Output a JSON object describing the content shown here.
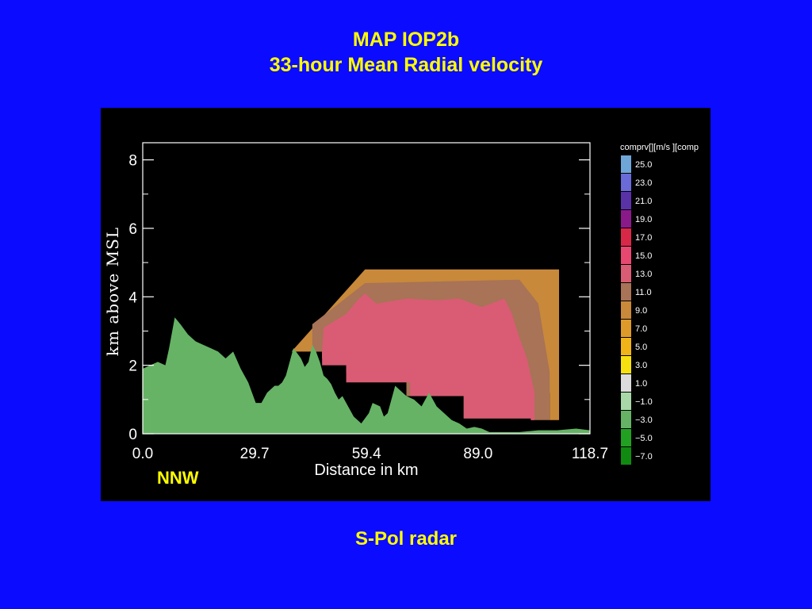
{
  "slide": {
    "title_line1": "MAP IOP2b",
    "title_line2": "33-hour Mean Radial velocity",
    "direction": "NNW",
    "caption": "S-Pol radar"
  },
  "colors": {
    "background": "#0b0bff",
    "text_yellow": "#ffff00",
    "terrain": "#66b366",
    "velocity_13": "#d95c74",
    "velocity_11": "#a87356",
    "velocity_9": "#c9893a"
  },
  "chart_data": {
    "type": "heatmap",
    "ylabel": "km above MSL",
    "xlabel": "Distance in km",
    "xlim": [
      0.0,
      118.7
    ],
    "ylim": [
      0,
      8.5
    ],
    "x_ticks": [
      "0.0",
      "29.7",
      "59.4",
      "89.0",
      "118.7"
    ],
    "x_tick_values": [
      0.0,
      29.7,
      59.4,
      89.0,
      118.7
    ],
    "y_ticks": [
      "0",
      "2",
      "4",
      "6",
      "8"
    ],
    "y_tick_values": [
      0,
      2,
      4,
      6,
      8
    ],
    "colorbar": {
      "title": "comprv[][m/s ][comp",
      "entries": [
        {
          "label": "25.0",
          "color": "#6fa6d8"
        },
        {
          "label": "23.0",
          "color": "#6a6ad8"
        },
        {
          "label": "21.0",
          "color": "#5a32a8"
        },
        {
          "label": "19.0",
          "color": "#8a1a8a"
        },
        {
          "label": "17.0",
          "color": "#d82848"
        },
        {
          "label": "15.0",
          "color": "#e84870"
        },
        {
          "label": "13.0",
          "color": "#d95c74"
        },
        {
          "label": "11.0",
          "color": "#a87356"
        },
        {
          "label": "9.0",
          "color": "#c9893a"
        },
        {
          "label": "7.0",
          "color": "#dd9a2a"
        },
        {
          "label": "5.0",
          "color": "#f0b418"
        },
        {
          "label": "3.0",
          "color": "#f7e010"
        },
        {
          "label": "1.0",
          "color": "#dcdcdc"
        },
        {
          "label": "−1.0",
          "color": "#a8d8a8"
        },
        {
          "label": "−3.0",
          "color": "#66b366"
        },
        {
          "label": "−5.0",
          "color": "#22a022"
        },
        {
          "label": "−7.0",
          "color": "#108a10"
        }
      ]
    },
    "terrain_height_km": {
      "x": [
        0,
        2,
        4,
        6,
        7,
        8.5,
        10,
        12,
        14,
        15,
        16,
        18,
        20,
        22,
        24,
        26,
        28,
        30,
        31.5,
        33,
        34,
        35,
        36,
        37,
        38,
        40,
        42,
        43,
        44,
        45,
        46,
        47,
        48,
        49,
        50,
        51,
        52,
        53,
        54,
        56,
        58,
        60,
        61,
        63,
        64,
        65,
        66,
        67,
        68,
        70,
        72,
        74,
        76,
        78,
        80,
        82,
        84,
        86,
        88,
        90,
        92,
        95,
        100,
        105,
        110,
        115,
        118.7
      ],
      "y": [
        1.9,
        2.0,
        2.1,
        2.0,
        2.5,
        3.4,
        3.2,
        2.9,
        2.7,
        2.65,
        2.6,
        2.5,
        2.4,
        2.2,
        2.4,
        1.9,
        1.5,
        0.9,
        0.9,
        1.2,
        1.3,
        1.4,
        1.4,
        1.5,
        1.7,
        2.5,
        2.2,
        1.95,
        2.1,
        2.6,
        2.4,
        2.1,
        1.7,
        1.6,
        1.45,
        1.2,
        1.0,
        1.1,
        0.9,
        0.5,
        0.3,
        0.6,
        0.9,
        0.8,
        0.5,
        0.6,
        1.0,
        1.4,
        1.3,
        1.1,
        1.0,
        0.8,
        1.2,
        0.8,
        0.6,
        0.4,
        0.3,
        0.15,
        0.2,
        0.15,
        0.05,
        0.05,
        0.05,
        0.1,
        0.1,
        0.15,
        0.1
      ]
    },
    "velocity_regions": [
      {
        "level": "9.0",
        "color": "#c9893a",
        "x": [
          39.5,
          59,
          110.5,
          110.5,
          108,
          108,
          103,
          103,
          85.2,
          85.2,
          70,
          70,
          54,
          54,
          47.6,
          47.6,
          39.5
        ],
        "y": [
          2.4,
          4.8,
          4.8,
          0.4,
          0.4,
          1.2,
          1.2,
          0.45,
          0.45,
          1.1,
          1.1,
          1.8,
          1.8,
          2.2,
          2.2,
          2.4,
          2.4
        ]
      },
      {
        "level": "11.0",
        "color": "#a87356",
        "x": [
          45,
          59,
          100,
          105,
          108,
          108,
          103,
          103,
          85.2,
          85.2,
          70,
          70,
          54,
          54,
          47.6,
          47.6,
          45
        ],
        "y": [
          3.2,
          4.4,
          4.5,
          3.8,
          1.8,
          0.4,
          0.4,
          0.45,
          0.45,
          1.1,
          1.1,
          1.8,
          1.8,
          2.2,
          2.2,
          2.4,
          2.4
        ]
      },
      {
        "level": "13.0",
        "color": "#d95c74",
        "x": [
          48,
          54,
          57,
          59,
          62,
          70,
          78,
          84,
          90,
          96,
          98,
          100,
          102,
          104,
          104,
          103,
          103,
          85.2,
          85.2,
          71,
          71,
          54,
          54,
          47.6,
          47.6,
          48
        ],
        "y": [
          3.1,
          3.5,
          3.9,
          4.1,
          3.8,
          3.95,
          3.9,
          3.95,
          3.7,
          3.95,
          3.5,
          2.8,
          2.2,
          1.2,
          0.4,
          0.4,
          0.45,
          0.45,
          1.1,
          1.1,
          1.5,
          1.5,
          2.0,
          2.0,
          2.4,
          3.1
        ]
      }
    ]
  }
}
